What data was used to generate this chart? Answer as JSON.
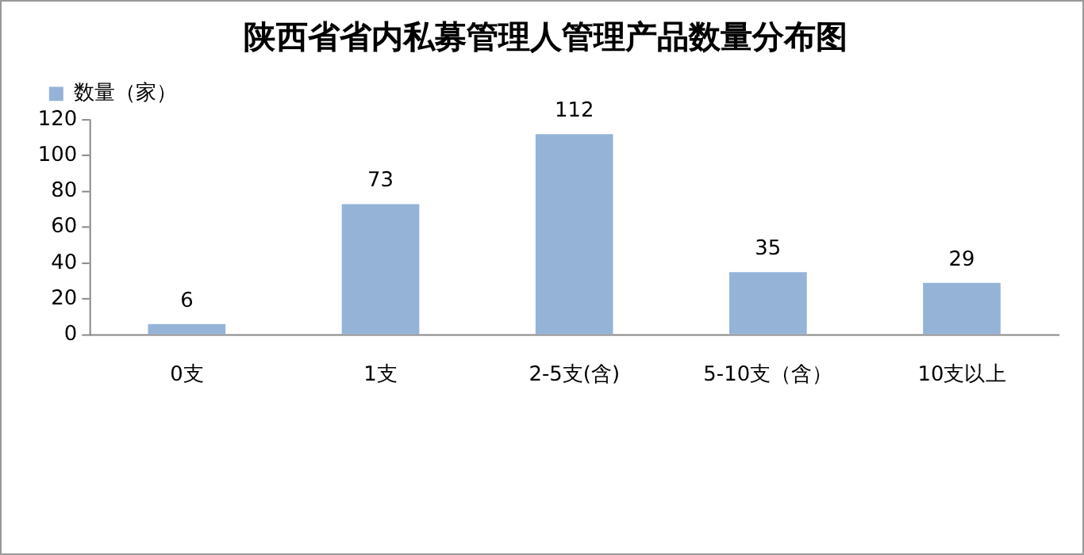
{
  "chart_data": {
    "type": "bar",
    "title": "陕西省省内私募管理人管理产品数量分布图",
    "categories": [
      "0支",
      "1支",
      "2-5支(含)",
      "5-10支（含）",
      "10支以上"
    ],
    "series": [
      {
        "name": "数量（家）",
        "color": "#95b3d7",
        "values": [
          6,
          73,
          112,
          35,
          29
        ]
      }
    ],
    "ylim": [
      0,
      120
    ],
    "yticks": [
      0,
      20,
      40,
      60,
      80,
      100,
      120
    ],
    "grid": false,
    "legend": "top left",
    "data_labels": true
  }
}
